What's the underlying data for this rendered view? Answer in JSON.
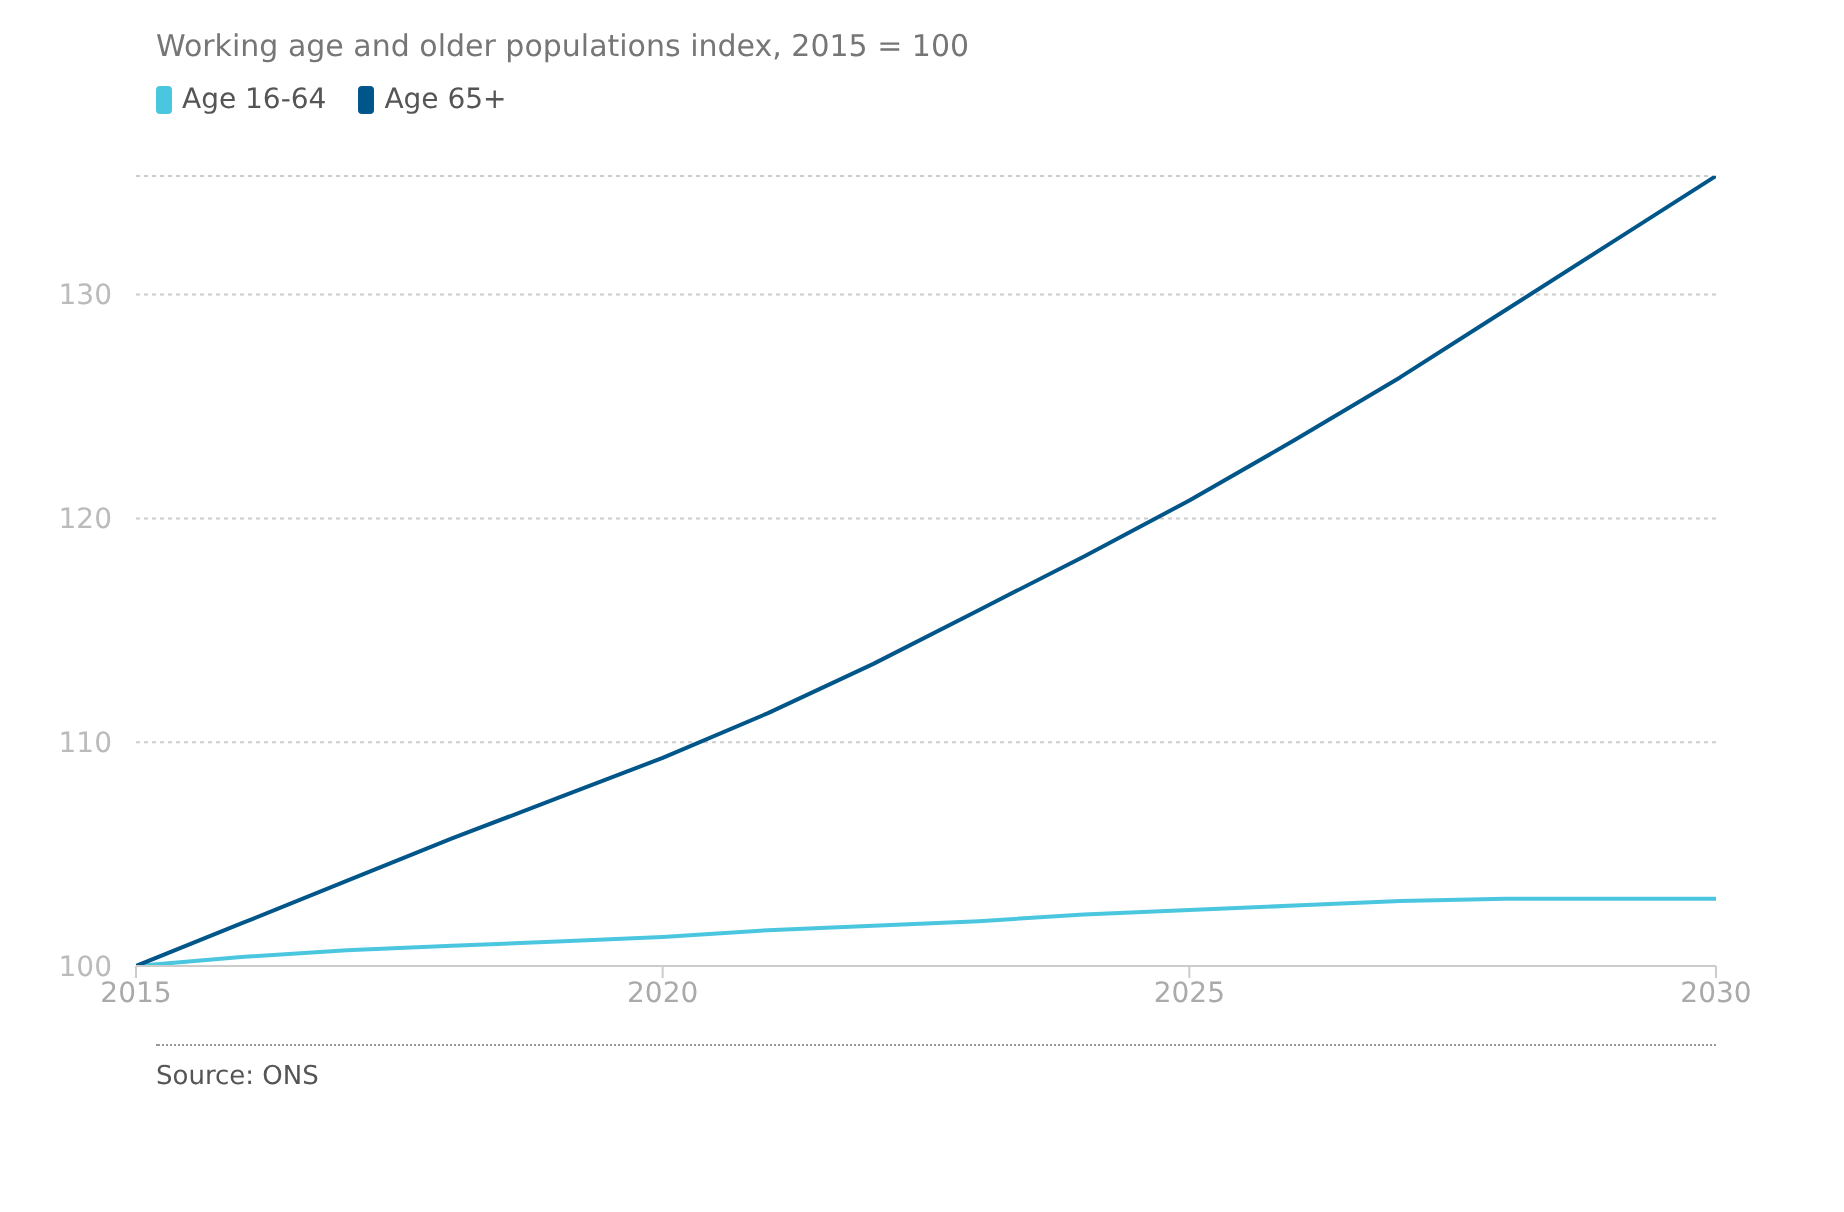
{
  "chart_data": {
    "type": "line",
    "title": "Working age and older populations index, 2015 = 100",
    "x": [
      2015,
      2016,
      2017,
      2018,
      2019,
      2020,
      2021,
      2022,
      2023,
      2024,
      2025,
      2026,
      2027,
      2028,
      2029,
      2030
    ],
    "series": [
      {
        "name": "Age 16-64",
        "color": "#4bc6df",
        "values": [
          100,
          100.4,
          100.7,
          100.9,
          101.1,
          101.3,
          101.6,
          101.8,
          102.0,
          102.3,
          102.5,
          102.7,
          102.9,
          103.0,
          103.0,
          103.0
        ]
      },
      {
        "name": "Age 65+",
        "color": "#005689",
        "values": [
          100,
          101.9,
          103.8,
          105.7,
          107.5,
          109.3,
          111.3,
          113.5,
          115.9,
          118.3,
          120.8,
          123.5,
          126.3,
          129.3,
          132.3,
          135.3
        ]
      }
    ],
    "xlim": [
      2015,
      2030
    ],
    "xticks": [
      2015,
      2020,
      2025,
      2030
    ],
    "ylim": [
      100,
      135.3
    ],
    "yticks": [
      100,
      110,
      120,
      130
    ],
    "grid": "y",
    "legend": "top left",
    "marker": "none",
    "line_style": "solid",
    "annotations": [
      "Source: ONS"
    ]
  }
}
